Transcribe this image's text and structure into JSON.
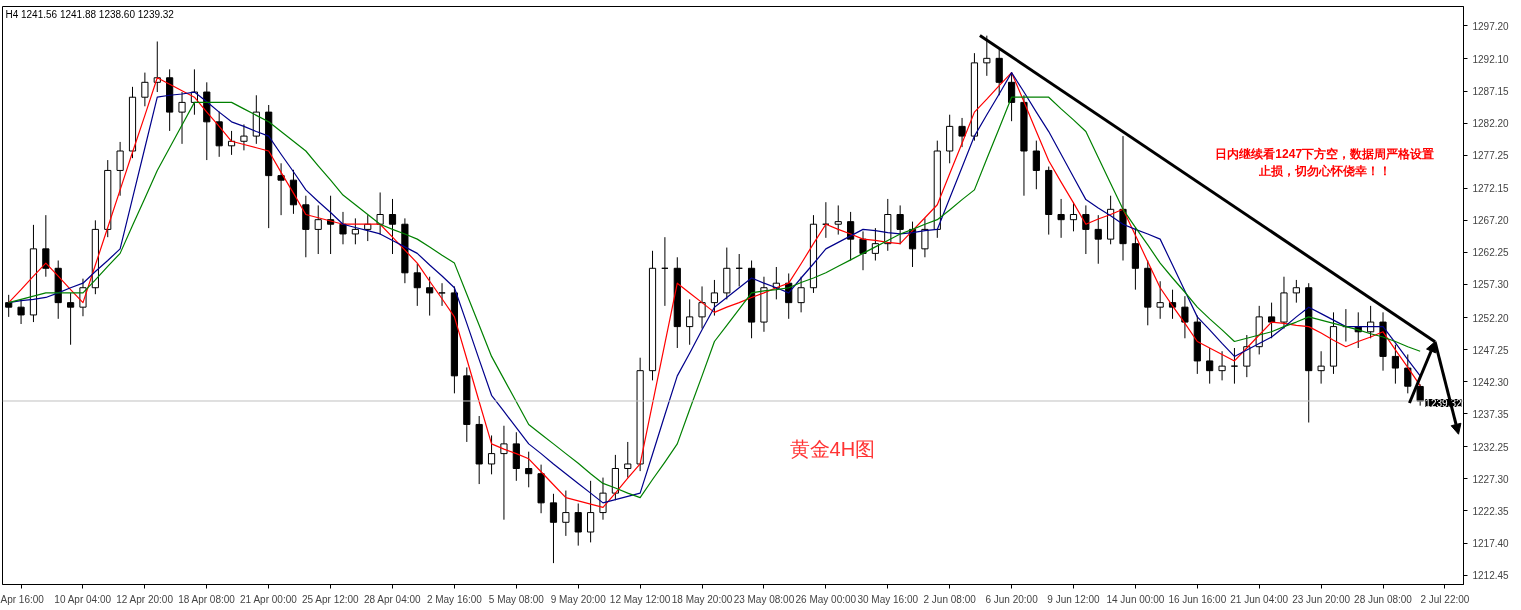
{
  "chart_data": {
    "type": "candlestick",
    "annotations": [
      "H4  1241.56 1241.88 1238.60 1239.32",
      "黄金4H图",
      "日内继续看1247下方空，数据周严格设置止损，切勿心怀侥幸！！"
    ],
    "categories": [
      null,
      "Apr 16:00",
      null,
      null,
      null,
      null,
      "10 Apr 04:00",
      null,
      null,
      null,
      null,
      "12 Apr 20:00",
      null,
      null,
      null,
      null,
      "18 Apr 08:00",
      null,
      null,
      null,
      null,
      "21 Apr 00:00",
      null,
      null,
      null,
      null,
      "25 Apr 12:00",
      null,
      null,
      null,
      null,
      "28 Apr 04:00",
      null,
      null,
      null,
      null,
      "2 May 16:00",
      null,
      null,
      null,
      null,
      "5 May 08:00",
      null,
      null,
      null,
      null,
      "9 May 20:00",
      null,
      null,
      null,
      null,
      "12 May 12:00",
      null,
      null,
      null,
      null,
      "18 May 20:00",
      null,
      null,
      null,
      null,
      "23 May 08:00",
      null,
      null,
      null,
      null,
      "26 May 00:00",
      null,
      null,
      null,
      null,
      "30 May 16:00",
      null,
      null,
      null,
      null,
      "2 Jun 08:00",
      null,
      null,
      null,
      null,
      "6 Jun 20:00",
      null,
      null,
      null,
      null,
      "9 Jun 12:00",
      null,
      null,
      null,
      null,
      "14 Jun 00:00",
      null,
      null,
      null,
      null,
      "16 Jun 16:00",
      null,
      null,
      null,
      null,
      "21 Jun 04:00",
      null,
      null,
      null,
      null,
      "23 Jun 20:00",
      null,
      null,
      null,
      null,
      "28 Jun 08:00",
      null,
      null,
      null,
      null,
      "2 Jul 22:00",
      null
    ],
    "ohlc": [
      [
        1254.5,
        1255.7,
        1252.3,
        1253.8
      ],
      [
        1253.8,
        1255.0,
        1251.2,
        1252.6
      ],
      [
        1252.6,
        1266.5,
        1251.5,
        1262.8
      ],
      [
        1262.8,
        1268.0,
        1258.5,
        1259.8
      ],
      [
        1259.8,
        1261.0,
        1252.0,
        1254.5
      ],
      [
        1254.5,
        1256.0,
        1248.0,
        1253.8
      ],
      [
        1253.8,
        1258.2,
        1252.4,
        1256.8
      ],
      [
        1256.8,
        1267.2,
        1255.8,
        1265.8
      ],
      [
        1265.8,
        1276.5,
        1264.6,
        1274.9
      ],
      [
        1274.9,
        1279.3,
        1271.0,
        1277.9
      ],
      [
        1277.9,
        1287.8,
        1276.8,
        1286.2
      ],
      [
        1286.2,
        1290.0,
        1284.8,
        1288.5
      ],
      [
        1288.5,
        1294.8,
        1287.0,
        1289.2
      ],
      [
        1289.2,
        1290.5,
        1281.0,
        1283.9
      ],
      [
        1283.9,
        1287.0,
        1279.0,
        1285.4
      ],
      [
        1285.4,
        1290.5,
        1283.5,
        1287.0
      ],
      [
        1287.0,
        1288.5,
        1276.5,
        1282.4
      ],
      [
        1282.4,
        1284.0,
        1277.0,
        1278.7
      ],
      [
        1278.7,
        1281.0,
        1277.3,
        1279.4
      ],
      [
        1279.4,
        1282.0,
        1278.0,
        1280.2
      ],
      [
        1280.2,
        1286.5,
        1279.0,
        1283.9
      ],
      [
        1283.9,
        1285.0,
        1266.0,
        1274.1
      ],
      [
        1274.1,
        1276.0,
        1268.0,
        1273.4
      ],
      [
        1273.4,
        1275.0,
        1268.2,
        1269.6
      ],
      [
        1269.6,
        1271.0,
        1261.5,
        1265.8
      ],
      [
        1265.8,
        1269.5,
        1262.0,
        1267.3
      ],
      [
        1267.3,
        1271.0,
        1262.0,
        1266.6
      ],
      [
        1266.6,
        1268.5,
        1263.5,
        1265.1
      ],
      [
        1265.1,
        1267.5,
        1263.5,
        1265.8
      ],
      [
        1265.8,
        1268.0,
        1264.0,
        1266.6
      ],
      [
        1266.6,
        1271.5,
        1265.0,
        1268.1
      ],
      [
        1268.1,
        1270.5,
        1262.0,
        1266.6
      ],
      [
        1266.6,
        1267.5,
        1257.5,
        1259.1
      ],
      [
        1259.1,
        1260.5,
        1254.0,
        1256.8
      ],
      [
        1256.8,
        1258.5,
        1252.5,
        1256.0
      ],
      [
        1256.0,
        1257.5,
        1254.0,
        1256.0
      ],
      [
        1256.0,
        1257.0,
        1240.5,
        1243.2
      ],
      [
        1243.2,
        1244.5,
        1233.0,
        1235.7
      ],
      [
        1235.7,
        1237.0,
        1226.5,
        1229.6
      ],
      [
        1229.6,
        1234.0,
        1228.0,
        1231.2
      ],
      [
        1231.2,
        1235.5,
        1221.0,
        1232.7
      ],
      [
        1232.7,
        1234.5,
        1227.0,
        1228.9
      ],
      [
        1228.9,
        1231.5,
        1226.0,
        1228.1
      ],
      [
        1228.1,
        1229.5,
        1222.0,
        1223.6
      ],
      [
        1223.6,
        1225.0,
        1214.3,
        1220.6
      ],
      [
        1220.6,
        1225.5,
        1218.5,
        1222.1
      ],
      [
        1222.1,
        1223.5,
        1217.0,
        1219.1
      ],
      [
        1219.1,
        1227.0,
        1217.5,
        1222.1
      ],
      [
        1222.1,
        1227.5,
        1221.0,
        1225.1
      ],
      [
        1225.1,
        1231.0,
        1224.0,
        1228.9
      ],
      [
        1228.9,
        1233.0,
        1227.5,
        1229.6
      ],
      [
        1229.6,
        1246.0,
        1228.5,
        1244.0
      ],
      [
        1244.0,
        1262.5,
        1242.5,
        1259.8
      ],
      [
        1259.8,
        1264.6,
        1254.0,
        1259.8
      ],
      [
        1259.8,
        1261.5,
        1247.5,
        1250.8
      ],
      [
        1250.8,
        1255.0,
        1248.0,
        1252.3
      ],
      [
        1252.3,
        1257.0,
        1250.5,
        1254.5
      ],
      [
        1254.5,
        1258.0,
        1252.5,
        1256.0
      ],
      [
        1256.0,
        1263.0,
        1255.0,
        1259.8
      ],
      [
        1259.8,
        1262.0,
        1257.0,
        1259.8
      ],
      [
        1259.8,
        1261.0,
        1249.0,
        1251.5
      ],
      [
        1251.5,
        1258.5,
        1250.0,
        1256.8
      ],
      [
        1256.8,
        1260.0,
        1255.0,
        1257.5
      ],
      [
        1257.5,
        1259.0,
        1252.0,
        1254.5
      ],
      [
        1254.5,
        1258.5,
        1253.0,
        1256.8
      ],
      [
        1256.8,
        1268.0,
        1256.0,
        1266.6
      ],
      [
        1266.6,
        1270.0,
        1264.5,
        1266.6
      ],
      [
        1266.6,
        1269.5,
        1265.0,
        1267.0
      ],
      [
        1267.0,
        1268.5,
        1261.0,
        1264.3
      ],
      [
        1264.3,
        1265.5,
        1259.5,
        1262.1
      ],
      [
        1262.1,
        1266.0,
        1261.0,
        1263.6
      ],
      [
        1263.6,
        1270.5,
        1262.5,
        1268.1
      ],
      [
        1268.1,
        1269.5,
        1263.5,
        1265.8
      ],
      [
        1265.8,
        1267.0,
        1260.0,
        1262.8
      ],
      [
        1262.8,
        1267.5,
        1261.5,
        1265.8
      ],
      [
        1265.8,
        1279.5,
        1264.5,
        1277.9
      ],
      [
        1277.9,
        1283.5,
        1276.0,
        1281.7
      ],
      [
        1281.7,
        1283.0,
        1278.5,
        1280.2
      ],
      [
        1280.2,
        1293.0,
        1279.5,
        1291.5
      ],
      [
        1291.5,
        1295.7,
        1289.5,
        1292.2
      ],
      [
        1292.2,
        1293.5,
        1286.5,
        1288.5
      ],
      [
        1288.5,
        1290.0,
        1282.5,
        1285.4
      ],
      [
        1285.4,
        1286.5,
        1271.0,
        1277.9
      ],
      [
        1277.9,
        1279.5,
        1272.0,
        1274.9
      ],
      [
        1274.9,
        1275.5,
        1265.0,
        1268.1
      ],
      [
        1268.1,
        1270.5,
        1264.5,
        1267.3
      ],
      [
        1267.3,
        1270.0,
        1265.5,
        1268.1
      ],
      [
        1268.1,
        1269.5,
        1262.0,
        1265.8
      ],
      [
        1265.8,
        1268.0,
        1260.5,
        1264.3
      ],
      [
        1264.3,
        1271.0,
        1263.5,
        1268.9
      ],
      [
        1268.9,
        1280.2,
        1261.0,
        1263.6
      ],
      [
        1263.6,
        1266.0,
        1256.5,
        1259.8
      ],
      [
        1259.8,
        1261.0,
        1251.0,
        1253.8
      ],
      [
        1253.8,
        1257.8,
        1252.0,
        1254.5
      ],
      [
        1254.5,
        1256.5,
        1252.0,
        1253.8
      ],
      [
        1253.8,
        1255.5,
        1249.0,
        1251.5
      ],
      [
        1251.5,
        1252.5,
        1243.5,
        1245.5
      ],
      [
        1245.5,
        1247.5,
        1242.0,
        1244.0
      ],
      [
        1244.0,
        1247.0,
        1242.5,
        1244.7
      ],
      [
        1244.7,
        1247.5,
        1242.0,
        1244.7
      ],
      [
        1244.7,
        1249.5,
        1243.0,
        1247.7
      ],
      [
        1247.7,
        1254.0,
        1246.5,
        1252.3
      ],
      [
        1252.3,
        1254.5,
        1249.0,
        1251.5
      ],
      [
        1251.5,
        1258.5,
        1250.5,
        1256.0
      ],
      [
        1256.0,
        1258.0,
        1254.5,
        1256.8
      ],
      [
        1256.8,
        1257.5,
        1236.0,
        1244.0
      ],
      [
        1244.0,
        1247.0,
        1242.0,
        1244.7
      ],
      [
        1244.7,
        1253.0,
        1243.5,
        1250.8
      ],
      [
        1250.8,
        1253.5,
        1248.5,
        1250.8
      ],
      [
        1250.8,
        1253.0,
        1247.5,
        1250.0
      ],
      [
        1250.0,
        1254.0,
        1249.0,
        1251.5
      ],
      [
        1251.5,
        1253.0,
        1244.0,
        1246.2
      ],
      [
        1246.2,
        1248.0,
        1242.0,
        1244.4
      ],
      [
        1244.4,
        1246.5,
        1240.5,
        1241.6
      ],
      [
        1241.56,
        1241.88,
        1238.6,
        1239.32
      ],
      null,
      null,
      null
    ],
    "series": [
      {
        "type": "line",
        "color": "#ff0000",
        "values": [
          1254.5,
          1256.5,
          1258.6,
          1260.6,
          1258.6,
          1256.5,
          1254.5,
          1260.3,
          1266.1,
          1271.9,
          1277.7,
          1283.4,
          1289.2,
          1288.2,
          1287.2,
          1286.2,
          1283.9,
          1281.7,
          1279.4,
          1278.9,
          1278.4,
          1277.9,
          1274.6,
          1271.4,
          1268.1,
          1267.6,
          1267.1,
          1266.6,
          1266.6,
          1266.6,
          1266.6,
          1264.6,
          1262.6,
          1260.6,
          1257.8,
          1255.1,
          1252.3,
          1245.8,
          1239.2,
          1232.7,
          1231.9,
          1231.2,
          1230.4,
          1228.4,
          1226.4,
          1224.4,
          1223.9,
          1223.4,
          1222.9,
          1225.1,
          1227.4,
          1229.6,
          1238.9,
          1248.2,
          1257.5,
          1256.0,
          1254.5,
          1253.0,
          1253.8,
          1254.5,
          1255.3,
          1256.0,
          1256.8,
          1257.5,
          1260.5,
          1263.6,
          1266.6,
          1265.8,
          1265.1,
          1264.3,
          1264.1,
          1263.8,
          1263.6,
          1265.6,
          1267.6,
          1269.6,
          1274.4,
          1279.1,
          1283.9,
          1285.9,
          1288.0,
          1290.0,
          1285.5,
          1280.9,
          1276.4,
          1273.1,
          1269.9,
          1266.6,
          1267.4,
          1268.1,
          1268.9,
          1264.9,
          1260.8,
          1256.8,
          1254.0,
          1251.3,
          1248.5,
          1247.5,
          1246.5,
          1245.5,
          1247.5,
          1249.5,
          1251.5,
          1251.3,
          1251.0,
          1250.8,
          1249.8,
          1248.7,
          1247.7,
          1248.5,
          1249.2,
          1250.0,
          1247.2,
          1244.5,
          1241.7,
          null,
          null,
          null
        ]
      },
      {
        "type": "line",
        "color": "#00008b",
        "values": [
          1254.5,
          1254.8,
          1255.0,
          1255.3,
          1256.0,
          1256.8,
          1257.5,
          1259.3,
          1261.0,
          1262.8,
          1270.6,
          1278.4,
          1286.2,
          1286.5,
          1286.7,
          1287.0,
          1285.5,
          1283.9,
          1282.4,
          1281.7,
          1280.9,
          1280.2,
          1277.4,
          1274.7,
          1271.9,
          1270.1,
          1268.4,
          1266.6,
          1266.1,
          1265.6,
          1265.1,
          1264.1,
          1263.1,
          1262.1,
          1260.3,
          1258.6,
          1256.8,
          1251.3,
          1245.7,
          1240.2,
          1237.7,
          1235.2,
          1232.7,
          1231.2,
          1229.6,
          1228.1,
          1226.6,
          1225.1,
          1223.6,
          1224.1,
          1224.6,
          1225.1,
          1231.1,
          1237.2,
          1243.2,
          1246.7,
          1250.3,
          1253.8,
          1255.3,
          1256.8,
          1258.3,
          1257.5,
          1256.8,
          1256.0,
          1258.3,
          1260.5,
          1262.8,
          1263.8,
          1264.8,
          1265.8,
          1265.6,
          1265.3,
          1265.1,
          1265.3,
          1265.6,
          1265.8,
          1270.6,
          1275.4,
          1280.2,
          1283.5,
          1286.7,
          1290.0,
          1287.0,
          1283.9,
          1280.9,
          1277.4,
          1273.9,
          1270.4,
          1269.1,
          1267.9,
          1266.6,
          1265.8,
          1265.1,
          1264.3,
          1260.3,
          1256.3,
          1252.3,
          1250.3,
          1248.2,
          1246.2,
          1247.2,
          1248.2,
          1249.2,
          1250.7,
          1252.3,
          1253.8,
          1252.8,
          1251.8,
          1250.8,
          1250.8,
          1250.8,
          1250.8,
          1248.3,
          1245.7,
          1243.2,
          null,
          null,
          null
        ]
      },
      {
        "type": "line",
        "color": "#008000",
        "values": [
          1254.5,
          1255.0,
          1255.5,
          1256.0,
          1256.0,
          1256.0,
          1256.0,
          1258.0,
          1260.1,
          1262.1,
          1266.4,
          1270.6,
          1274.9,
          1278.4,
          1281.9,
          1285.4,
          1285.4,
          1285.4,
          1285.4,
          1284.4,
          1283.4,
          1282.4,
          1280.9,
          1279.4,
          1277.9,
          1275.6,
          1273.4,
          1271.1,
          1269.6,
          1268.1,
          1266.6,
          1265.8,
          1265.1,
          1264.3,
          1263.1,
          1261.8,
          1260.6,
          1255.8,
          1251.0,
          1246.2,
          1242.7,
          1239.2,
          1235.7,
          1234.2,
          1232.7,
          1231.2,
          1229.7,
          1228.1,
          1226.6,
          1225.9,
          1225.1,
          1224.4,
          1227.2,
          1229.9,
          1232.7,
          1238.0,
          1243.2,
          1248.5,
          1251.0,
          1253.5,
          1256.0,
          1256.3,
          1256.5,
          1256.8,
          1257.6,
          1258.3,
          1259.1,
          1260.1,
          1261.1,
          1262.1,
          1263.1,
          1264.1,
          1265.1,
          1265.8,
          1266.6,
          1267.3,
          1268.8,
          1270.4,
          1271.9,
          1276.7,
          1281.4,
          1286.2,
          1286.2,
          1286.2,
          1286.2,
          1284.4,
          1282.7,
          1280.9,
          1276.9,
          1272.9,
          1268.9,
          1266.1,
          1263.4,
          1260.6,
          1258.3,
          1256.1,
          1253.8,
          1252.0,
          1250.3,
          1248.5,
          1249.0,
          1249.5,
          1250.0,
          1250.8,
          1251.5,
          1252.3,
          1251.8,
          1251.3,
          1250.8,
          1250.3,
          1249.7,
          1249.2,
          1248.5,
          1247.7,
          1247.0,
          null,
          null,
          null
        ]
      }
    ],
    "ref_lines": [
      {
        "axis": "y",
        "value": 1239.32,
        "label": "1239.32",
        "color": "#c0c0c0"
      }
    ],
    "ylim": [
      1211.0,
      1300.2
    ],
    "yticks": [
      {
        "value": 1297.2,
        "label": "1297.20"
      },
      {
        "value": 1292.1,
        "label": "1292.10"
      },
      {
        "value": 1287.15,
        "label": "1287.15"
      },
      {
        "value": 1282.2,
        "label": "1282.20"
      },
      {
        "value": 1277.25,
        "label": "1277.25"
      },
      {
        "value": 1272.15,
        "label": "1272.15"
      },
      {
        "value": 1267.2,
        "label": "1267.20"
      },
      {
        "value": 1262.25,
        "label": "1262.25"
      },
      {
        "value": 1257.3,
        "label": "1257.30"
      },
      {
        "value": 1252.2,
        "label": "1252.20"
      },
      {
        "value": 1247.25,
        "label": "1247.25"
      },
      {
        "value": 1242.3,
        "label": "1242.30"
      },
      {
        "value": 1237.35,
        "label": "1237.35"
      },
      {
        "value": 1232.25,
        "label": "1232.25"
      },
      {
        "value": 1227.3,
        "label": "1227.30"
      },
      {
        "value": 1222.35,
        "label": "1222.35"
      },
      {
        "value": 1217.4,
        "label": "1217.40"
      },
      {
        "value": 1212.45,
        "label": "1212.45"
      }
    ]
  }
}
